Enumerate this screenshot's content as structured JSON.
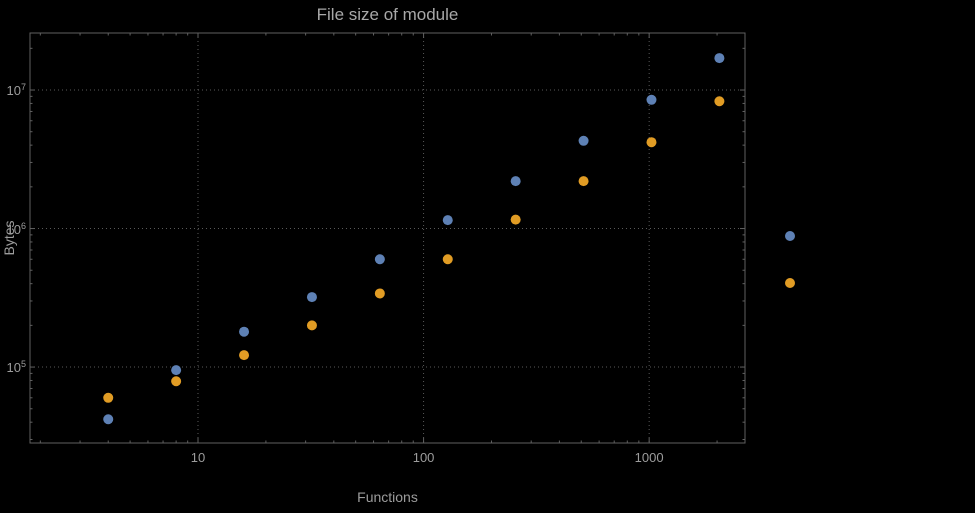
{
  "chart_data": {
    "type": "scatter",
    "title": "File size of module",
    "xlabel": "Functions",
    "ylabel": "Bytes",
    "x_scale": "log",
    "y_scale": "log",
    "grid": "dotted",
    "xlim": [
      1.8,
      2660
    ],
    "ylim": [
      28300,
      25800000
    ],
    "x_ticks": [
      10,
      100,
      1000
    ],
    "x_tick_labels": [
      "10",
      "100",
      "1000"
    ],
    "y_ticks": [
      100000,
      1000000,
      10000000
    ],
    "y_tick_labels": [
      {
        "base": "10",
        "exp": "5"
      },
      {
        "base": "10",
        "exp": "6"
      },
      {
        "base": "10",
        "exp": "7"
      }
    ],
    "colors": {
      "frame": "#606060",
      "grid": "#5a5a5a",
      "text": "#9c9c9c",
      "series_blue": "#5e81b5",
      "series_orange": "#e19c24"
    },
    "series": [
      {
        "name": "blue",
        "color": "#5e81b5",
        "x": [
          4,
          8,
          16,
          32,
          64,
          128,
          256,
          512,
          1024,
          2048
        ],
        "y": [
          42000,
          95000,
          180000,
          320000,
          600000,
          1150000,
          2200000,
          4300000,
          8500000,
          17000000
        ]
      },
      {
        "name": "orange",
        "color": "#e19c24",
        "x": [
          4,
          8,
          16,
          32,
          64,
          128,
          256,
          512,
          1024,
          2048
        ],
        "y": [
          60000,
          79000,
          122000,
          200000,
          340000,
          600000,
          1160000,
          2200000,
          4200000,
          8300000
        ]
      }
    ],
    "legend": {
      "position": "right-of-frame",
      "entries": [
        {
          "marker_color": "#5e81b5"
        },
        {
          "marker_color": "#e19c24"
        }
      ]
    }
  }
}
